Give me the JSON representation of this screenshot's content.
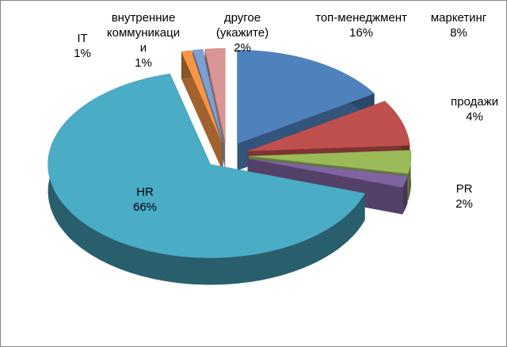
{
  "chart_data": {
    "type": "pie3d",
    "categories": [
      "топ-менеджмент",
      "маркетинг",
      "продажи",
      "PR",
      "HR",
      "IT",
      "внутренние коммуникации",
      "другое (укажите)"
    ],
    "values": [
      16,
      8,
      4,
      2,
      66,
      1,
      1,
      2
    ],
    "value_labels": [
      "16%",
      "8%",
      "4%",
      "2%",
      "66%",
      "1%",
      "1%",
      "2%"
    ],
    "colors": [
      "#4F81BD",
      "#C0504D",
      "#9BBB59",
      "#8064A2",
      "#4BACC6",
      "#F79646",
      "#7BA0D4",
      "#D99694"
    ]
  }
}
